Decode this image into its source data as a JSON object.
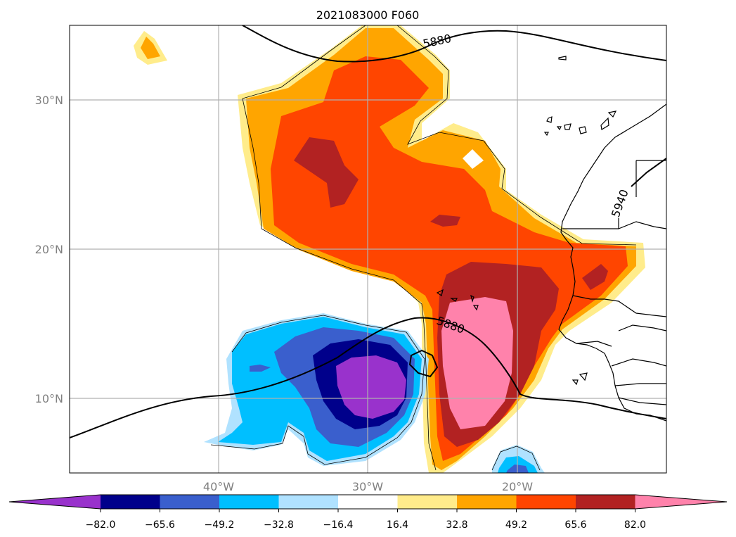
{
  "title": "2021083000 F060",
  "map": {
    "lat_ticks": [
      "30°N",
      "20°N",
      "10°N"
    ],
    "lon_ticks": [
      "40°W",
      "30°W",
      "20°W"
    ],
    "contour_labels": [
      "5880",
      "5880",
      "5940"
    ]
  },
  "colorbar": {
    "ticks": [
      "−82.0",
      "−65.6",
      "−49.2",
      "−32.8",
      "−16.4",
      "16.4",
      "32.8",
      "49.2",
      "65.6",
      "82.0"
    ],
    "colors": [
      "#9932cc",
      "#00008b",
      "#3a5fcd",
      "#00bfff",
      "#b0e2ff",
      "#ffffff",
      "#ffec8b",
      "#ffa500",
      "#ff4500",
      "#b22222",
      "#ff82ab"
    ]
  }
}
